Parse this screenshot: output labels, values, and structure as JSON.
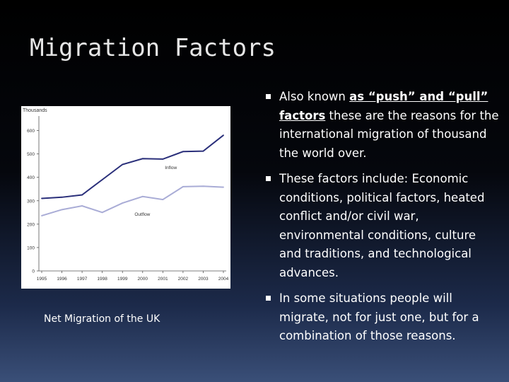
{
  "slide": {
    "title": "Migration Factors",
    "caption": "Net Migration of the UK"
  },
  "bullets": [
    {
      "emphasis": "as “push” and “pull” factors",
      "before": "Also known ",
      "after": " these are the reasons for the international migration of thousand the world over."
    },
    {
      "before": "These factors include: Economic conditions, political factors, heated conflict and/or civil war, environmental conditions, culture and traditions, and technological advances."
    },
    {
      "before": "In some situations people will migrate, not for just one, but for a combination of those reasons."
    }
  ],
  "chart_data": {
    "type": "line",
    "ylabel": "Thousands",
    "ylim": [
      0,
      650
    ],
    "yticks": [
      0,
      100,
      200,
      300,
      400,
      500,
      600
    ],
    "x": [
      "1995",
      "1996",
      "1997",
      "1998",
      "1999",
      "2000",
      "2001",
      "2002",
      "2003",
      "2004"
    ],
    "series": [
      {
        "name": "Inflow",
        "values": [
          310,
          315,
          325,
          390,
          455,
          480,
          478,
          510,
          512,
          580
        ],
        "color": "#2a2f7a"
      },
      {
        "name": "Outflow",
        "values": [
          236,
          262,
          278,
          250,
          290,
          318,
          305,
          360,
          362,
          358
        ],
        "color": "#a9acd6"
      }
    ],
    "grid": false
  }
}
